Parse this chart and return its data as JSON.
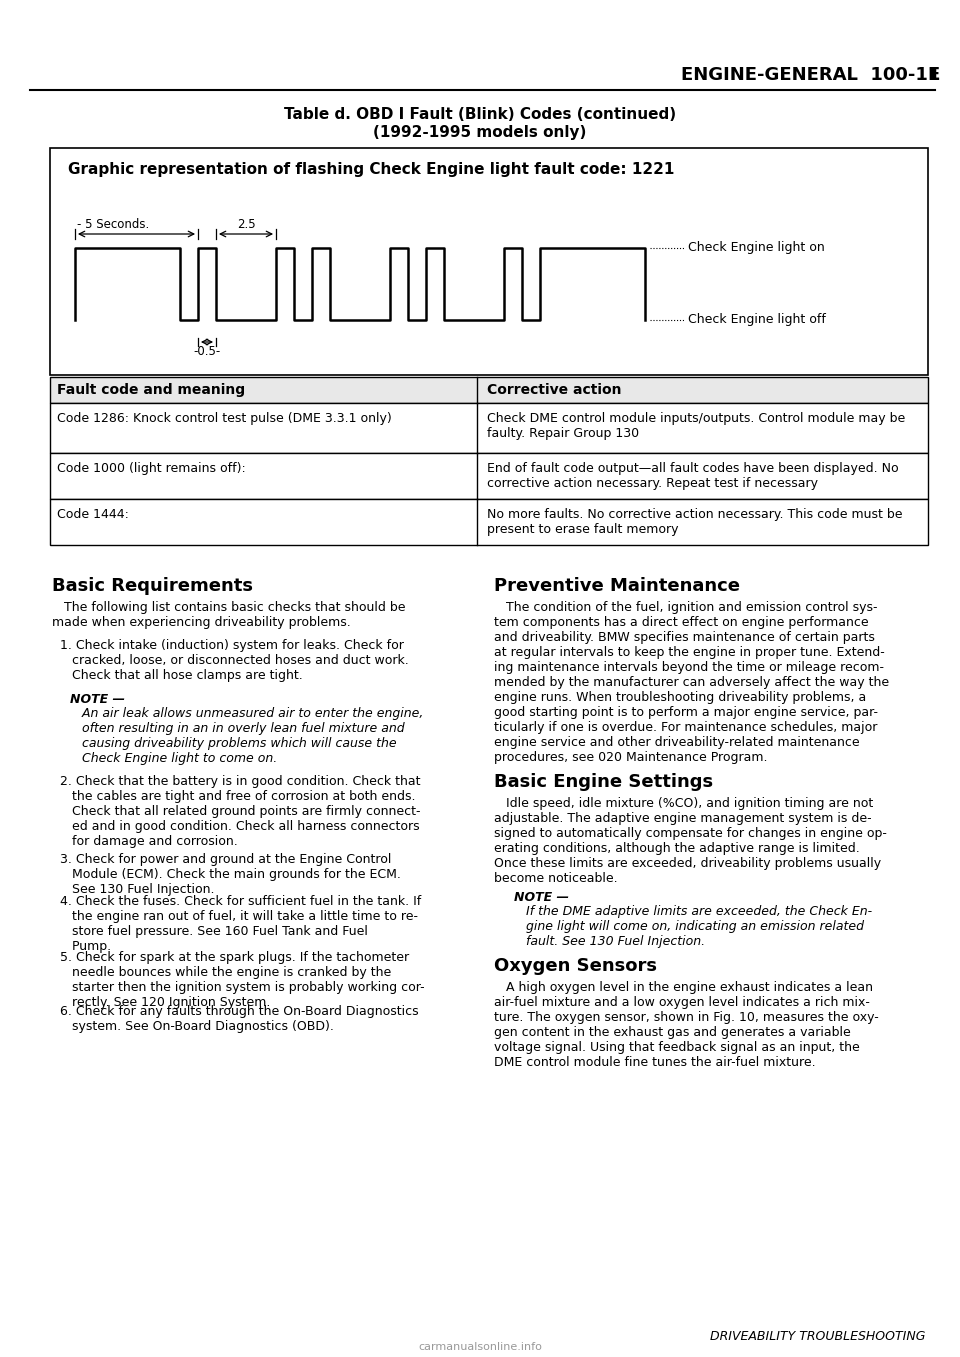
{
  "page_header_right": "ENGINE-GENERAL  100-11",
  "table_title_line1": "Table d. OBD I Fault (Blink) Codes (continued)",
  "table_title_line2": "(1992-1995 models only)",
  "graphic_title": "Graphic representation of flashing Check Engine light fault code: 1221",
  "label_5sec": "5 Seconds.",
  "label_2_5": "2.5",
  "label_0_5": "0.5",
  "label_ce_on": "Check Engine light on",
  "label_ce_off": "Check Engine light off",
  "fault_header_left": "Fault code and meaning",
  "fault_header_right": "Corrective action",
  "table_rows": [
    {
      "left": "Code 1286: Knock control test pulse (DME 3.3.1 only)",
      "right_parts": [
        {
          "text": "Check DME control module inputs/outputs. Control module may be\nfaulty. Repair Group ",
          "bold": false
        },
        {
          "text": "130",
          "bold": true
        }
      ]
    },
    {
      "left": "Code 1000 (light remains off):",
      "right_plain": "End of fault code output—all fault codes have been displayed. No\ncorrective action necessary. Repeat test if necessary"
    },
    {
      "left": "Code 1444:",
      "right_plain": "No more faults. No corrective action necessary. This code must be\npresent to erase fault memory"
    }
  ],
  "section_left_title": "Basic Requirements",
  "section_right_title": "Preventive Maintenance",
  "section_right_title2": "Basic Engine Settings",
  "section_right_title3": "Oxygen Sensors",
  "footer": "DRIVEABILITY TROUBLESHOOTING",
  "watermark": "carmanualsonline.info",
  "bg_color": "#ffffff"
}
